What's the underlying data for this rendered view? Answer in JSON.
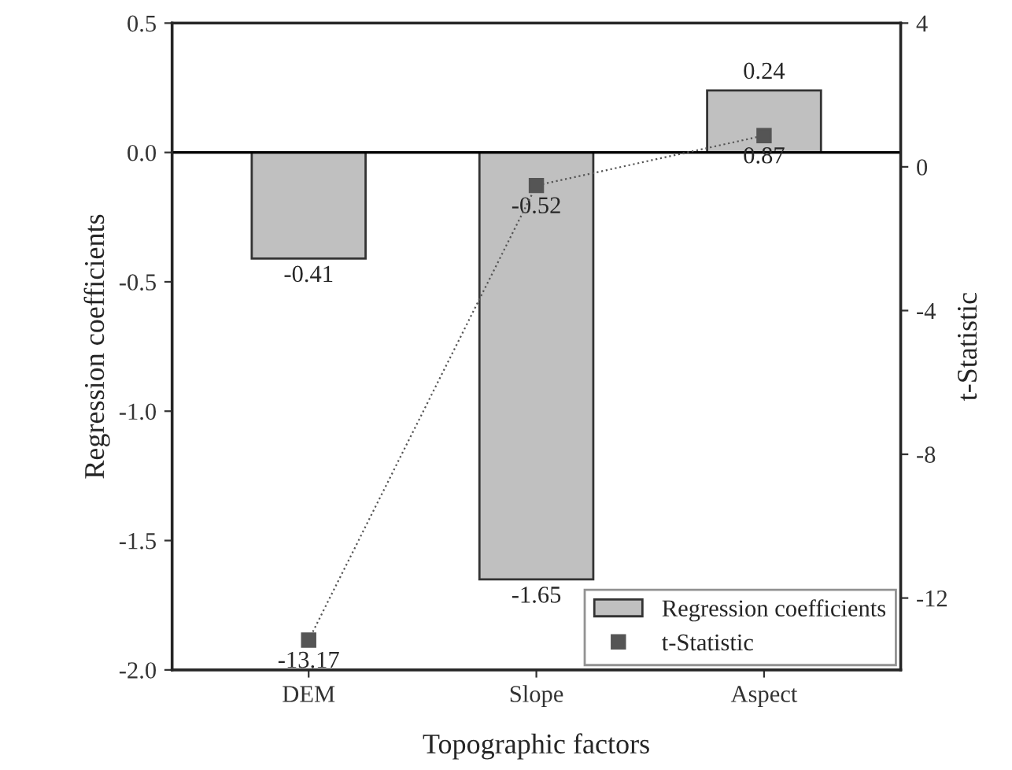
{
  "chart_data": {
    "type": "bar",
    "xlabel": "Topographic factors",
    "ylabel": "Regression coefficients",
    "y2label": "t-Statistic",
    "categories": [
      "DEM",
      "Slope",
      "Aspect"
    ],
    "series": [
      {
        "name": "Regression coefficients",
        "color": "#c0c0c0",
        "values": [
          -0.41,
          -1.65,
          0.24
        ]
      },
      {
        "name": "t-Statistic",
        "type": "line",
        "axis": "y2",
        "color": "#555555",
        "marker": "square",
        "line_style": "dotted",
        "values": [
          -13.17,
          -0.52,
          0.87
        ]
      }
    ],
    "ylim": [
      -2.0,
      0.5
    ],
    "yticks": [
      {
        "value": -2.0,
        "label": "-2.0"
      },
      {
        "value": -1.5,
        "label": "-1.5"
      },
      {
        "value": -1.0,
        "label": "-1.0"
      },
      {
        "value": -0.5,
        "label": "-0.5"
      },
      {
        "value": 0.0,
        "label": "0.0"
      },
      {
        "value": 0.5,
        "label": "0.5"
      }
    ],
    "y2lim": [
      -14,
      4
    ],
    "y2ticks": [
      {
        "value": -12,
        "label": "-12"
      },
      {
        "value": -8,
        "label": "-8"
      },
      {
        "value": -4,
        "label": "-4"
      },
      {
        "value": 0,
        "label": "0"
      },
      {
        "value": 4,
        "label": "4"
      }
    ],
    "ref_lines": [
      {
        "axis": "y",
        "value": 0,
        "color": "#000000",
        "line_style": "solid"
      }
    ],
    "data_labels": true,
    "grid": false,
    "legend": "bottom right"
  }
}
